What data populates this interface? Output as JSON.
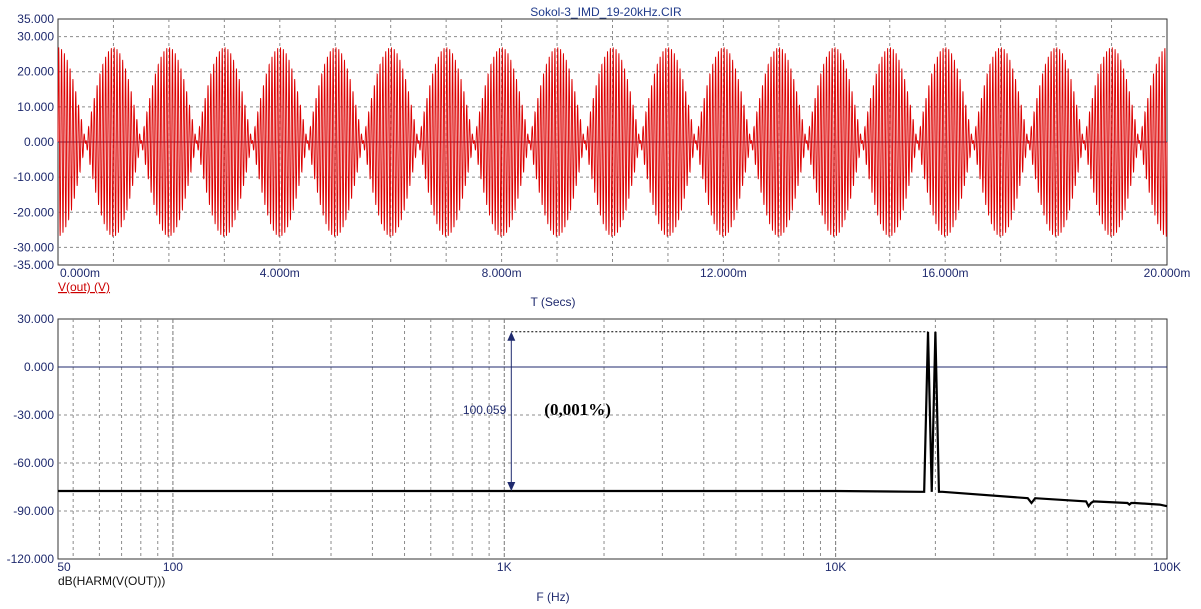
{
  "title": "Sokol-3_IMD_19-20kHz.CIR",
  "colors": {
    "axis_text": "#1f2a6e",
    "waveform": "#dd0000",
    "spectrum": "#000000",
    "zero_line": "#1f2a6e",
    "grid": "#8c8c8c"
  },
  "chart_data": [
    {
      "type": "line",
      "panel": "top",
      "xlabel": "T (Secs)",
      "ylabel": "V(out) (V)",
      "xlim": [
        0,
        0.02
      ],
      "ylim": [
        -35,
        35
      ],
      "x_ticks": [
        0,
        0.004,
        0.008,
        0.012,
        0.016,
        0.02
      ],
      "x_tick_labels": [
        "0.000m",
        "4.000m",
        "8.000m",
        "12.000m",
        "16.000m",
        "20.000m"
      ],
      "y_ticks": [
        35,
        30,
        20,
        10,
        0,
        -10,
        -20,
        -30,
        -35
      ],
      "y_tick_labels": [
        "35.000",
        "30.000",
        "20.000",
        "10.000",
        "0.000",
        "-10.000",
        "-20.000",
        "-30.000",
        "-35.000"
      ],
      "series": [
        {
          "name": "V(out) (V)",
          "description": "two-tone signal",
          "f1_hz": 19000,
          "f2_hz": 20000,
          "peak_v": 27,
          "beat_hz": 1000
        }
      ]
    },
    {
      "type": "line",
      "panel": "bottom",
      "xlabel": "F (Hz)",
      "ylabel": "dB(HARM(V(OUT)))",
      "xscale": "log",
      "xlim": [
        45,
        100000
      ],
      "ylim": [
        -120,
        30
      ],
      "x_tick_labels": [
        "50",
        "100",
        "1K",
        "10K",
        "100K"
      ],
      "x_ticks": [
        50,
        100,
        1000,
        10000,
        100000
      ],
      "y_ticks": [
        30,
        0,
        -30,
        -60,
        -90,
        -120
      ],
      "y_tick_labels": [
        "30.000",
        "0.000",
        "-30.000",
        "-60.000",
        "-90.000",
        "-120.000"
      ],
      "series": [
        {
          "name": "dB(HARM(V(OUT)))",
          "x": [
            45,
            500,
            1000,
            10000,
            18000,
            18500,
            19000,
            19500,
            20000,
            20500,
            21000,
            38000,
            39000,
            40000,
            57000,
            58000,
            59000,
            60000,
            76000,
            77000,
            78000,
            80000,
            95000,
            100000
          ],
          "y": [
            -77.5,
            -77.5,
            -77.5,
            -77.5,
            -78,
            -78,
            22,
            -78,
            22,
            -78,
            -78,
            -82,
            -85,
            -82,
            -84,
            -87,
            -85,
            -84,
            -85,
            -86,
            -85,
            -85,
            -86,
            -87
          ]
        }
      ],
      "annotations": [
        {
          "text": "100.059",
          "x": 1050,
          "y1": 22,
          "y2": -77.5
        },
        {
          "text": "(0,001%)"
        }
      ]
    }
  ]
}
